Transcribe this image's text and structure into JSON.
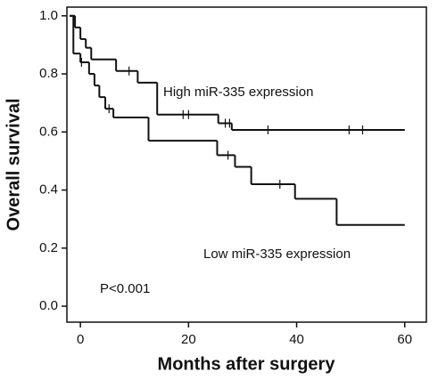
{
  "chart_data": {
    "type": "survival",
    "xlabel": "Months after surgery",
    "ylabel": "Overall survival",
    "annotation": "P<0.001",
    "xlim": [
      -2.5,
      64
    ],
    "ylim": [
      -0.055,
      1.03
    ],
    "xticks": [
      0,
      20,
      40,
      60
    ],
    "yticks": [
      {
        "value": 0.0,
        "label": "0.0"
      },
      0.2,
      0.4,
      0.6,
      0.8,
      {
        "value": 1.0,
        "label": "1.0"
      }
    ],
    "series": [
      {
        "name": "High miR-335 expression",
        "color": "#111111",
        "x": [
          -2,
          -1,
          0,
          1,
          2,
          6.6,
          10.6,
          14.2,
          25.5,
          28,
          60
        ],
        "values": [
          1.0,
          0.96,
          0.92,
          0.89,
          0.85,
          0.81,
          0.77,
          0.66,
          0.63,
          0.607,
          0.607
        ],
        "censor_x": [
          9,
          19,
          20,
          26.8,
          27.6,
          34.7,
          49.7,
          52.2
        ],
        "censor_values": [
          0.81,
          0.66,
          0.66,
          0.63,
          0.63,
          0.607,
          0.607,
          0.607
        ]
      },
      {
        "name": "Low miR-335 expression",
        "color": "#111111",
        "x": [
          -2,
          -1.3,
          0,
          1.6,
          2.6,
          3.5,
          4.6,
          6.1,
          12.6,
          25.3,
          28.6,
          31.6,
          39.7,
          47.4,
          60
        ],
        "values": [
          1.0,
          0.87,
          0.84,
          0.8,
          0.76,
          0.72,
          0.68,
          0.65,
          0.57,
          0.52,
          0.48,
          0.42,
          0.37,
          0.28,
          0.28
        ],
        "censor_x": [
          0.2,
          5.3,
          27.3,
          36.9
        ],
        "censor_values": [
          0.84,
          0.68,
          0.52,
          0.42
        ]
      }
    ]
  }
}
